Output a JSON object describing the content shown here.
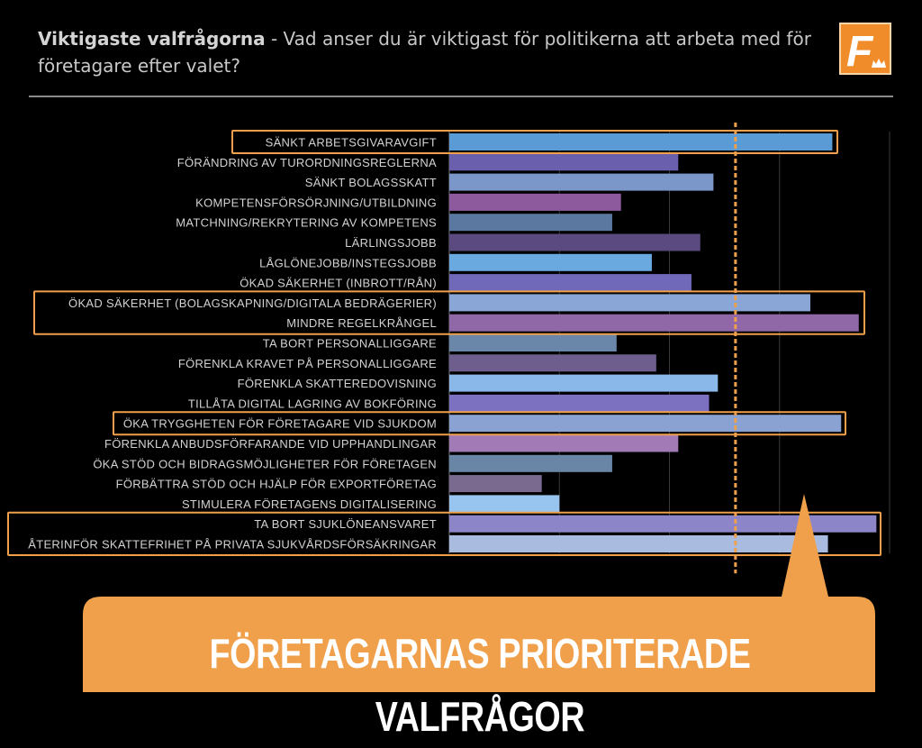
{
  "header": {
    "title_bold": "Viktigaste valfrågorna",
    "title_rest": " - Vad anser du är viktigast för politikerna att arbeta med för företagare efter valet?"
  },
  "logo": {
    "letter": "F",
    "icon": "crown-icon"
  },
  "colors": {
    "accent": "#f0a04b",
    "highlight_border": "#f0a04b",
    "reference_line": "#f0a04b"
  },
  "chart_data": {
    "type": "bar",
    "orientation": "horizontal",
    "xlim": [
      0,
      100
    ],
    "grid": true,
    "reference_line": 65,
    "categories": [
      "SÄNKT ARBETSGIVARAVGIFT",
      "FÖRÄNDRING AV TURORDNINGSREGLERNA",
      "SÄNKT BOLAGSSKATT",
      "KOMPETENSFÖRSÖRJNING/UTBILDNING",
      "MATCHNING/REKRYTERING AV KOMPETENS",
      "LÄRLINGSJOBB",
      "LÅGLÖNEJOBB/INSTEGSJOBB",
      "ÖKAD SÄKERHET (INBROTT/RÅN)",
      "ÖKAD SÄKERHET (BOLAGSKAPNING/DIGITALA BEDRÄGERIER)",
      "MINDRE REGELKRÅNGEL",
      "TA BORT PERSONALLIGGARE",
      "FÖRENKLA KRAVET PÅ PERSONALLIGGARE",
      "FÖRENKLA SKATTEREDOVISNING",
      "TILLÅTA DIGITAL LAGRING AV BOKFÖRING",
      "ÖKA TRYGGHETEN FÖR FÖRETAGARE VID SJUKDOM",
      "FÖRENKLA ANBUDSFÖRFARANDE VID UPPHANDLINGAR",
      "ÖKA STÖD OCH BIDRAGSMÖJLIGHETER FÖR FÖRETAGEN",
      "FÖRBÄTTRA STÖD OCH HJÄLP FÖR EXPORTFÖRETAG",
      "STIMULERA FÖRETAGENS DIGITALISERING",
      "TA BORT SJUKLÖNEANSVARET",
      "ÅTERINFÖR SKATTEFRIHET PÅ PRIVATA SJUKVÅRDSFÖRSÄKRINGAR"
    ],
    "values": [
      87,
      52,
      60,
      39,
      37,
      57,
      46,
      55,
      82,
      93,
      38,
      47,
      61,
      59,
      89,
      52,
      37,
      21,
      25,
      97,
      86
    ],
    "bar_colors": [
      "#5b9bd5",
      "#6a5fac",
      "#7b96c8",
      "#8e5a9e",
      "#5a78a0",
      "#5a4a80",
      "#6aa8e0",
      "#7068b8",
      "#8aa6d6",
      "#9068a8",
      "#6a86a8",
      "#6e5e8e",
      "#8ab8e8",
      "#7c70c0",
      "#8aa2d2",
      "#a27ab6",
      "#6a86a6",
      "#7a6a90",
      "#98c4f0",
      "#8c86c8",
      "#aabbe0"
    ],
    "highlight_groups": [
      [
        0,
        0
      ],
      [
        8,
        9
      ],
      [
        14,
        14
      ],
      [
        19,
        20
      ]
    ]
  },
  "callout": {
    "text": "FÖRETAGARNAS PRIORITERADE VALFRÅGOR"
  }
}
